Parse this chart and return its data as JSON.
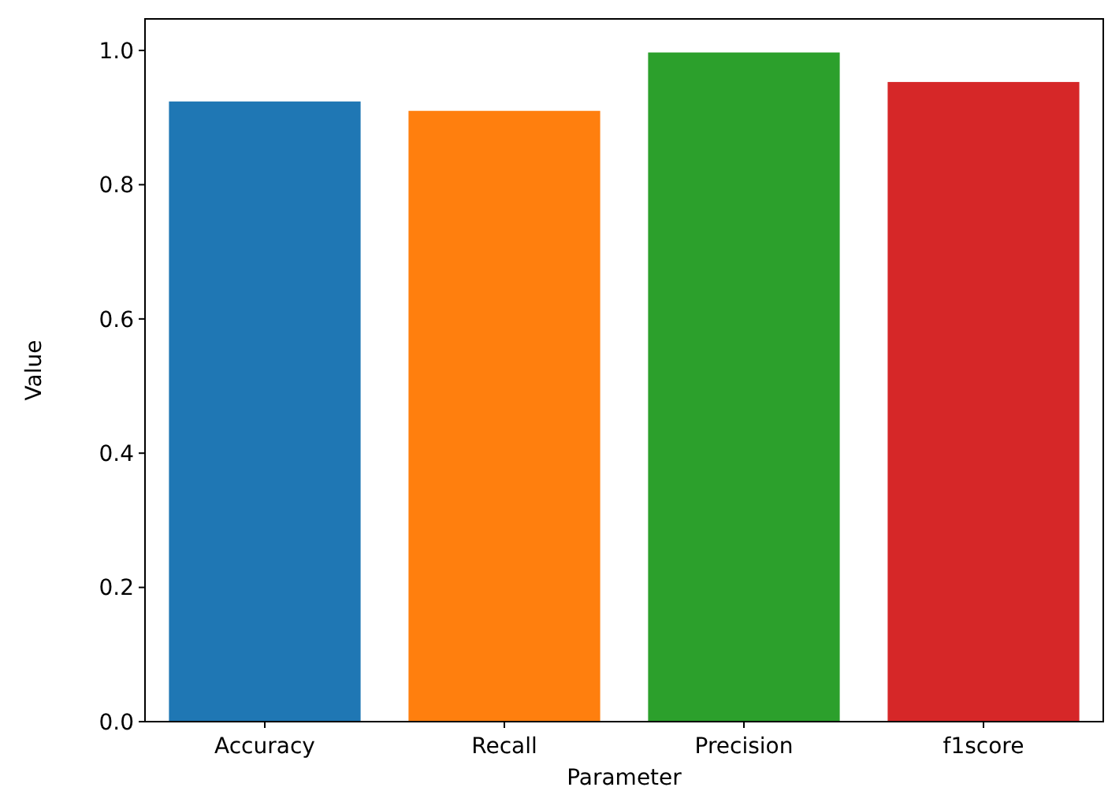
{
  "chart_data": {
    "type": "bar",
    "xlabel": "Parameter",
    "ylabel": "Value",
    "categories": [
      "Accuracy",
      "Recall",
      "Precision",
      "f1score"
    ],
    "values": [
      0.924,
      0.91,
      0.997,
      0.953
    ],
    "colors": [
      "#1f77b4",
      "#ff7f0e",
      "#2ca02c",
      "#d62728"
    ],
    "ylim": [
      0,
      1.047
    ],
    "yticks": [
      {
        "value": 0,
        "label": "0.0"
      },
      {
        "value": 0.2,
        "label": "0.2"
      },
      {
        "value": 0.4,
        "label": "0.4"
      },
      {
        "value": 0.6,
        "label": "0.6"
      },
      {
        "value": 0.8,
        "label": "0.8"
      },
      {
        "value": 1,
        "label": "1.0"
      }
    ]
  }
}
